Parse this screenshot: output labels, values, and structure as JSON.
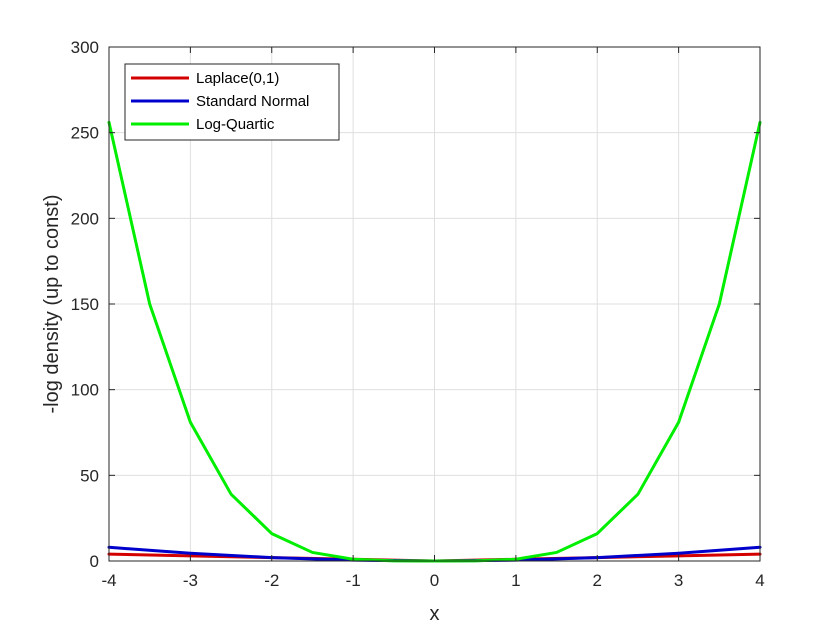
{
  "chart_data": {
    "type": "line",
    "title": "",
    "xlabel": "x",
    "ylabel": "-log density (up to const)",
    "xlim": [
      -4,
      4
    ],
    "ylim": [
      0,
      300
    ],
    "xticks": [
      -4,
      -3,
      -2,
      -1,
      0,
      1,
      2,
      3,
      4
    ],
    "yticks": [
      0,
      50,
      100,
      150,
      200,
      250,
      300
    ],
    "xtick_labels": [
      "-4",
      "-3",
      "-2",
      "-1",
      "0",
      "1",
      "2",
      "3",
      "4"
    ],
    "ytick_labels": [
      "0",
      "50",
      "100",
      "150",
      "200",
      "250",
      "300"
    ],
    "grid": true,
    "legend_position": "top-left",
    "series": [
      {
        "name": "Laplace(0,1)",
        "color": "#d40000",
        "x": [
          -4,
          -3,
          -2,
          -1,
          0,
          1,
          2,
          3,
          4
        ],
        "y": [
          4,
          3,
          2,
          1,
          0,
          1,
          2,
          3,
          4
        ]
      },
      {
        "name": "Standard Normal",
        "color": "#0000cc",
        "x": [
          -4,
          -3,
          -2,
          -1,
          0,
          1,
          2,
          3,
          4
        ],
        "y": [
          8,
          4.5,
          2,
          0.5,
          0,
          0.5,
          2,
          4.5,
          8
        ]
      },
      {
        "name": "Log-Quartic",
        "color": "#00ee00",
        "x": [
          -4,
          -3.5,
          -3,
          -2.5,
          -2,
          -1.5,
          -1,
          -0.5,
          0,
          0.5,
          1,
          1.5,
          2,
          2.5,
          3,
          3.5,
          4
        ],
        "y": [
          256,
          150,
          81,
          39,
          16,
          5,
          1,
          0.06,
          0,
          0.06,
          1,
          5,
          16,
          39,
          81,
          150,
          256
        ]
      }
    ]
  }
}
